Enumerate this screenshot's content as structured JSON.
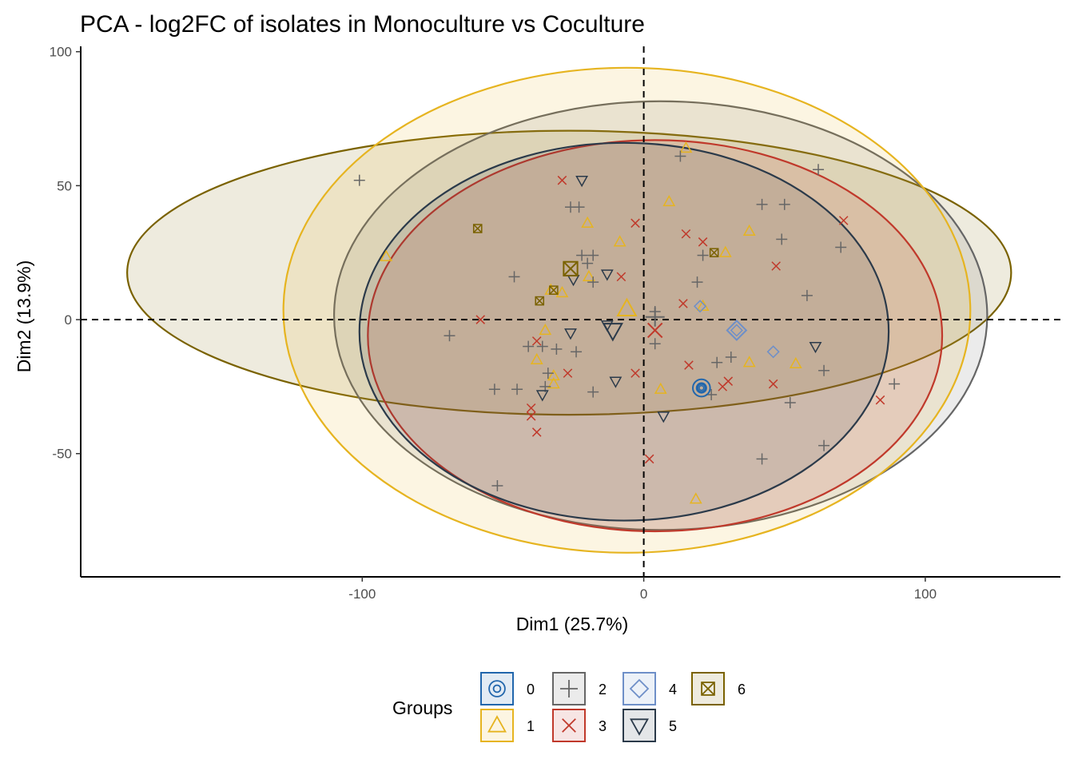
{
  "chart_data": {
    "type": "scatter",
    "title": "PCA - log2FC of isolates in Monoculture vs Coculture",
    "xlabel": "Dim1 (25.7%)",
    "ylabel": "Dim2 (13.9%)",
    "xlim": [
      -200,
      148
    ],
    "ylim": [
      -96,
      102
    ],
    "xticks": [
      -100,
      0,
      100
    ],
    "xtick_labels": [
      "-100",
      "0",
      "100"
    ],
    "yticks": [
      -50,
      0,
      50,
      100
    ],
    "ytick_labels": [
      "-50",
      "0",
      "50",
      "100"
    ],
    "reference_lines": {
      "x": 0,
      "y": 0,
      "style": "dashed"
    },
    "grid": false,
    "legend": {
      "title": "Groups",
      "position": "bottom"
    },
    "series": [
      {
        "name": "0",
        "shape": "circle-open-dot",
        "color": "#2166ac",
        "points": [
          [
            20.5,
            -25.5
          ]
        ],
        "centroid": [
          20.5,
          -25.5
        ],
        "ellipse": null
      },
      {
        "name": "1",
        "shape": "triangle-up-open",
        "color": "#e6b420",
        "points": [
          [
            -91.5,
            23.5
          ],
          [
            -20,
            36
          ],
          [
            -19.5,
            16
          ],
          [
            -33,
            11
          ],
          [
            -29,
            10
          ],
          [
            -35,
            -4
          ],
          [
            -38,
            -15
          ],
          [
            -32,
            -24
          ],
          [
            -32,
            -21
          ],
          [
            15,
            64
          ],
          [
            9,
            44
          ],
          [
            -8.5,
            29
          ],
          [
            37.5,
            33
          ],
          [
            29,
            25
          ],
          [
            21,
            5
          ],
          [
            37.5,
            -16
          ],
          [
            54,
            -16.5
          ],
          [
            6,
            -26
          ],
          [
            18.5,
            -67
          ]
        ],
        "centroid": [
          -6,
          4
        ],
        "ellipse": {
          "cx": -6,
          "cy": 3.5,
          "rx": 122,
          "ry": 90.5
        }
      },
      {
        "name": "2",
        "shape": "cross-plus",
        "color": "#666666",
        "points": [
          [
            -101,
            52
          ],
          [
            -26,
            42
          ],
          [
            -23,
            42
          ],
          [
            -22,
            24
          ],
          [
            -18,
            24
          ],
          [
            -20,
            21
          ],
          [
            -18,
            14
          ],
          [
            -46,
            16
          ],
          [
            -69,
            -6
          ],
          [
            -41,
            -10
          ],
          [
            -36,
            -10
          ],
          [
            -31,
            -11
          ],
          [
            -24,
            -12
          ],
          [
            -34,
            -20
          ],
          [
            -35,
            -25
          ],
          [
            -45,
            -26
          ],
          [
            -53,
            -26
          ],
          [
            -18,
            -27
          ],
          [
            -52,
            -62
          ],
          [
            13,
            61
          ],
          [
            21,
            24
          ],
          [
            19,
            14
          ],
          [
            4,
            3
          ],
          [
            4,
            -9
          ],
          [
            42,
            43
          ],
          [
            50,
            43
          ],
          [
            62,
            56
          ],
          [
            49,
            30
          ],
          [
            70,
            27
          ],
          [
            58,
            9
          ],
          [
            26,
            -16
          ],
          [
            31,
            -14
          ],
          [
            24,
            -28
          ],
          [
            52,
            -31
          ],
          [
            64,
            -19
          ],
          [
            64,
            -47
          ],
          [
            42,
            -52
          ],
          [
            89,
            -24
          ]
        ],
        "centroid": [
          4,
          1
        ],
        "ellipse": {
          "cx": 6,
          "cy": 1.5,
          "rx": 116,
          "ry": 80
        }
      },
      {
        "name": "3",
        "shape": "x-cross",
        "color": "#c0392b",
        "points": [
          [
            -29,
            52
          ],
          [
            -58,
            0
          ],
          [
            -38,
            -8
          ],
          [
            -40,
            -33
          ],
          [
            -40,
            -36
          ],
          [
            -38,
            -42
          ],
          [
            -27,
            -20
          ],
          [
            -8,
            16
          ],
          [
            -3,
            36
          ],
          [
            -3,
            -20
          ],
          [
            15,
            32
          ],
          [
            21,
            29
          ],
          [
            14,
            6
          ],
          [
            16,
            -17
          ],
          [
            30,
            -23
          ],
          [
            28,
            -25
          ],
          [
            47,
            20
          ],
          [
            46,
            -24
          ],
          [
            71,
            37
          ],
          [
            84,
            -30
          ],
          [
            2,
            -52
          ]
        ],
        "centroid": [
          4,
          -4
        ],
        "ellipse": {
          "cx": 4,
          "cy": -6,
          "rx": 102,
          "ry": 73
        }
      },
      {
        "name": "4",
        "shape": "diamond-open-dot",
        "color": "#6e8fc8",
        "points": [
          [
            46,
            -12
          ],
          [
            33,
            -4
          ],
          [
            20,
            5
          ]
        ],
        "centroid": [
          33,
          -4
        ],
        "ellipse": null
      },
      {
        "name": "5",
        "shape": "triangle-down-open",
        "color": "#2b3a4a",
        "points": [
          [
            -22,
            52
          ],
          [
            -13,
            17
          ],
          [
            -25,
            15
          ],
          [
            -26,
            -5
          ],
          [
            -36,
            -28
          ],
          [
            -10,
            -23
          ],
          [
            -13,
            -2
          ],
          [
            7,
            -36
          ],
          [
            61,
            -10
          ]
        ],
        "centroid": [
          -11,
          -4
        ],
        "ellipse": {
          "cx": -7,
          "cy": -4.5,
          "rx": 94,
          "ry": 70.5
        }
      },
      {
        "name": "6",
        "shape": "square-open-x",
        "color": "#7a6200",
        "points": [
          [
            -59,
            34
          ],
          [
            -32,
            11
          ],
          [
            -37,
            7
          ],
          [
            25,
            25
          ]
        ],
        "centroid": [
          -26,
          19
        ],
        "ellipse": {
          "cx": -26.5,
          "cy": 17.5,
          "rx": 157,
          "ry": 53
        }
      }
    ]
  }
}
